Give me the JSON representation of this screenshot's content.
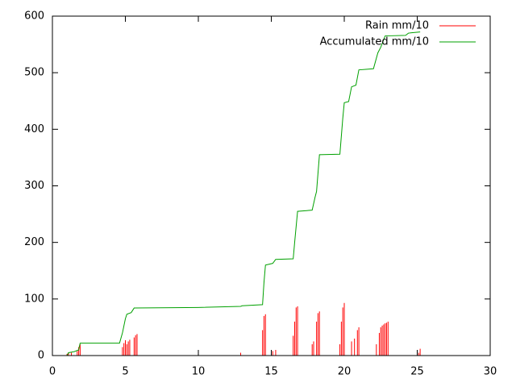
{
  "chart_data": {
    "type": "line",
    "legend": "top-right",
    "xlim": [
      0,
      30
    ],
    "xticks": [
      0,
      5,
      10,
      15,
      20,
      25,
      30
    ],
    "ylim": [
      0,
      600
    ],
    "yticks": [
      0,
      100,
      200,
      300,
      400,
      500,
      600
    ],
    "series": [
      {
        "name": "Rain mm/10",
        "color": "#ff0000",
        "style": "impulses",
        "x": [
          1.0,
          1.1,
          1.3,
          1.7,
          1.8,
          1.9,
          4.8,
          4.9,
          5.0,
          5.1,
          5.2,
          5.3,
          5.6,
          5.7,
          5.8,
          12.9,
          14.4,
          14.5,
          14.6,
          15.1,
          15.3,
          16.5,
          16.6,
          16.7,
          16.8,
          17.8,
          17.9,
          18.1,
          18.2,
          18.3,
          19.7,
          19.8,
          19.9,
          20.0,
          20.5,
          20.7,
          20.9,
          21.0,
          22.2,
          22.4,
          22.5,
          22.6,
          22.7,
          22.8,
          22.9,
          23.0,
          25.1,
          25.2
        ],
        "values": [
          3,
          5,
          5,
          8,
          15,
          20,
          15,
          22,
          27,
          20,
          25,
          28,
          32,
          36,
          38,
          5,
          45,
          70,
          73,
          8,
          10,
          35,
          60,
          85,
          87,
          20,
          25,
          60,
          75,
          78,
          20,
          60,
          85,
          93,
          25,
          30,
          45,
          50,
          20,
          40,
          50,
          53,
          55,
          57,
          58,
          60,
          5,
          12
        ]
      },
      {
        "name": "Accumulated mm/10",
        "color": "#00a000",
        "style": "lines",
        "x": [
          1.0,
          1.1,
          1.5,
          1.8,
          1.9,
          4.6,
          4.8,
          5.0,
          5.1,
          5.4,
          5.6,
          10.0,
          12.9,
          13.0,
          14.4,
          14.5,
          14.6,
          15.1,
          15.3,
          16.5,
          16.6,
          16.8,
          17.8,
          18.0,
          18.1,
          18.3,
          19.7,
          19.9,
          20.0,
          20.3,
          20.5,
          20.8,
          21.0,
          22.0,
          22.3,
          22.5,
          22.8,
          24.2,
          24.4,
          25.2
        ],
        "values": [
          0,
          5,
          7,
          10,
          22,
          22,
          40,
          65,
          73,
          76,
          84,
          85,
          87,
          88,
          90,
          130,
          160,
          163,
          170,
          171,
          200,
          255,
          257,
          280,
          290,
          355,
          356,
          420,
          447,
          449,
          475,
          478,
          505,
          507,
          535,
          545,
          565,
          566,
          570,
          572
        ]
      }
    ]
  }
}
